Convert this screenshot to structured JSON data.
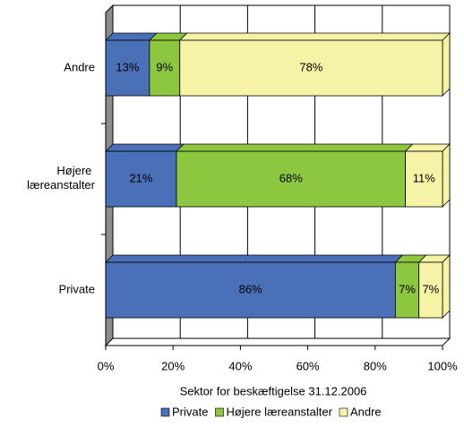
{
  "chart_data": {
    "type": "stacked-barh",
    "xlabel": "Sektor for beskæftigelse 31.12.2006",
    "categories": [
      "Andre",
      "Højere læreanstalter",
      "Private"
    ],
    "series": [
      {
        "name": "Private",
        "color": "#4a70b8",
        "values": [
          13,
          21,
          86
        ],
        "value_labels": [
          "13%",
          "21%",
          "86%"
        ]
      },
      {
        "name": "Højere læreanstalter",
        "color": "#8dc63f",
        "values": [
          9,
          68,
          7
        ],
        "value_labels": [
          "9%",
          "68%",
          "7%"
        ]
      },
      {
        "name": "Andre",
        "color": "#f7f3a6",
        "values": [
          78,
          11,
          7
        ],
        "value_labels": [
          "78%",
          "11%",
          "7%"
        ]
      }
    ],
    "xlim": [
      0,
      100
    ],
    "xticks": [
      {
        "value": 0,
        "label": "0%"
      },
      {
        "value": 20,
        "label": "20%"
      },
      {
        "value": 40,
        "label": "40%"
      },
      {
        "value": 60,
        "label": "60%"
      },
      {
        "value": 80,
        "label": "80%"
      },
      {
        "value": 100,
        "label": "100%"
      }
    ],
    "grid": true
  }
}
